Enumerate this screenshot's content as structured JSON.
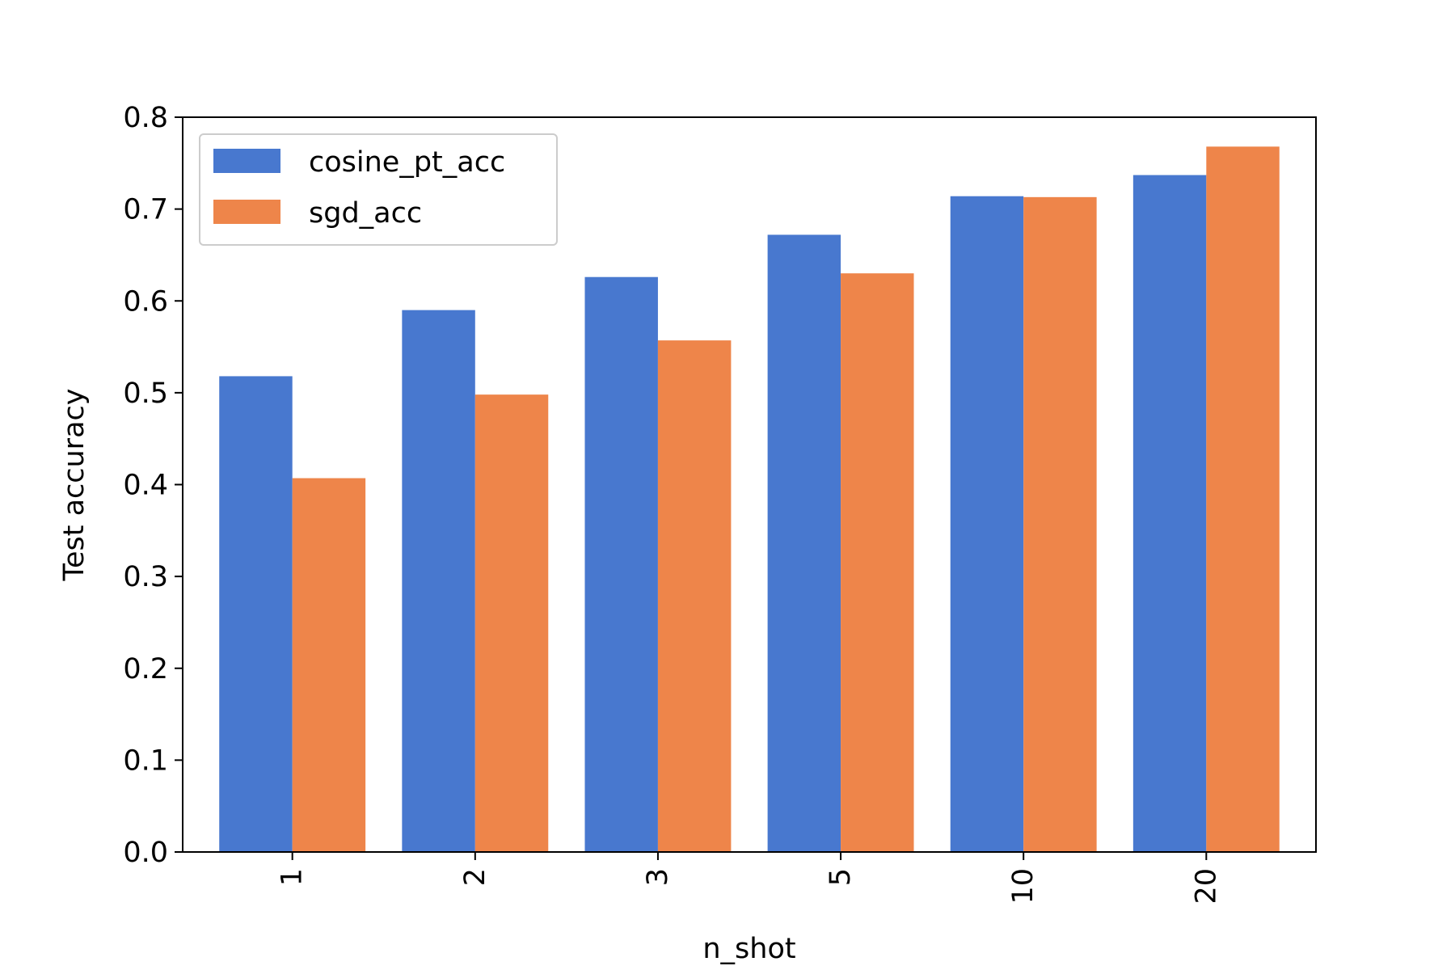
{
  "chart_data": {
    "type": "bar",
    "categories": [
      "1",
      "2",
      "3",
      "5",
      "10",
      "20"
    ],
    "series": [
      {
        "name": "cosine_pt_acc",
        "color": "#4878cf",
        "values": [
          0.518,
          0.59,
          0.626,
          0.672,
          0.714,
          0.737
        ]
      },
      {
        "name": "sgd_acc",
        "color": "#ee854a",
        "values": [
          0.407,
          0.498,
          0.557,
          0.63,
          0.713,
          0.768
        ]
      }
    ],
    "xlabel": "n_shot",
    "ylabel": "Test accuracy",
    "ylim": [
      0.0,
      0.8
    ],
    "yticks": [
      "0.0",
      "0.1",
      "0.2",
      "0.3",
      "0.4",
      "0.5",
      "0.6",
      "0.7",
      "0.8"
    ],
    "legend": "top-left",
    "grid": false
  }
}
